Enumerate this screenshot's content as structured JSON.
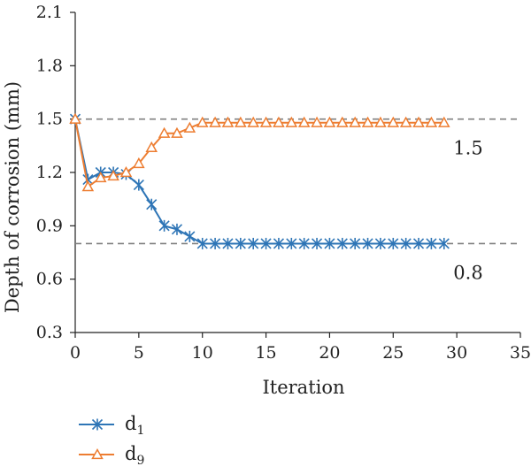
{
  "chart_data": {
    "type": "line",
    "xlabel": "Iteration",
    "ylabel": "Depth of corrosion (mm)",
    "xlim": [
      0,
      35
    ],
    "ylim": [
      0.3,
      2.1
    ],
    "xticks": [
      "0",
      "5",
      "10",
      "15",
      "20",
      "25",
      "30",
      "35"
    ],
    "yticks": [
      "0.3",
      "0.6",
      "0.9",
      "1.2",
      "1.5",
      "1.8",
      "2.1"
    ],
    "grid": false,
    "legend_position": "bottom-left",
    "reference_lines": [
      {
        "y": 1.5,
        "label": "1.5",
        "style": "dashed",
        "color": "#808080"
      },
      {
        "y": 0.8,
        "label": "0.8",
        "style": "dashed",
        "color": "#808080"
      }
    ],
    "x": [
      0,
      1,
      2,
      3,
      4,
      5,
      6,
      7,
      8,
      9,
      10,
      11,
      12,
      13,
      14,
      15,
      16,
      17,
      18,
      19,
      20,
      21,
      22,
      23,
      24,
      25,
      26,
      27,
      28,
      29
    ],
    "series": [
      {
        "name": "d",
        "name_subscript": "1",
        "color": "#2E75B6",
        "marker": "asterisk",
        "values": [
          1.5,
          1.16,
          1.2,
          1.2,
          1.19,
          1.13,
          1.02,
          0.9,
          0.88,
          0.84,
          0.8,
          0.8,
          0.8,
          0.8,
          0.8,
          0.8,
          0.8,
          0.8,
          0.8,
          0.8,
          0.8,
          0.8,
          0.8,
          0.8,
          0.8,
          0.8,
          0.8,
          0.8,
          0.8,
          0.8
        ]
      },
      {
        "name": "d",
        "name_subscript": "9",
        "color": "#ED7D31",
        "marker": "triangle",
        "values": [
          1.5,
          1.12,
          1.17,
          1.18,
          1.2,
          1.25,
          1.34,
          1.42,
          1.42,
          1.45,
          1.48,
          1.48,
          1.48,
          1.48,
          1.48,
          1.48,
          1.48,
          1.48,
          1.48,
          1.48,
          1.48,
          1.48,
          1.48,
          1.48,
          1.48,
          1.48,
          1.48,
          1.48,
          1.48,
          1.48
        ]
      }
    ]
  }
}
